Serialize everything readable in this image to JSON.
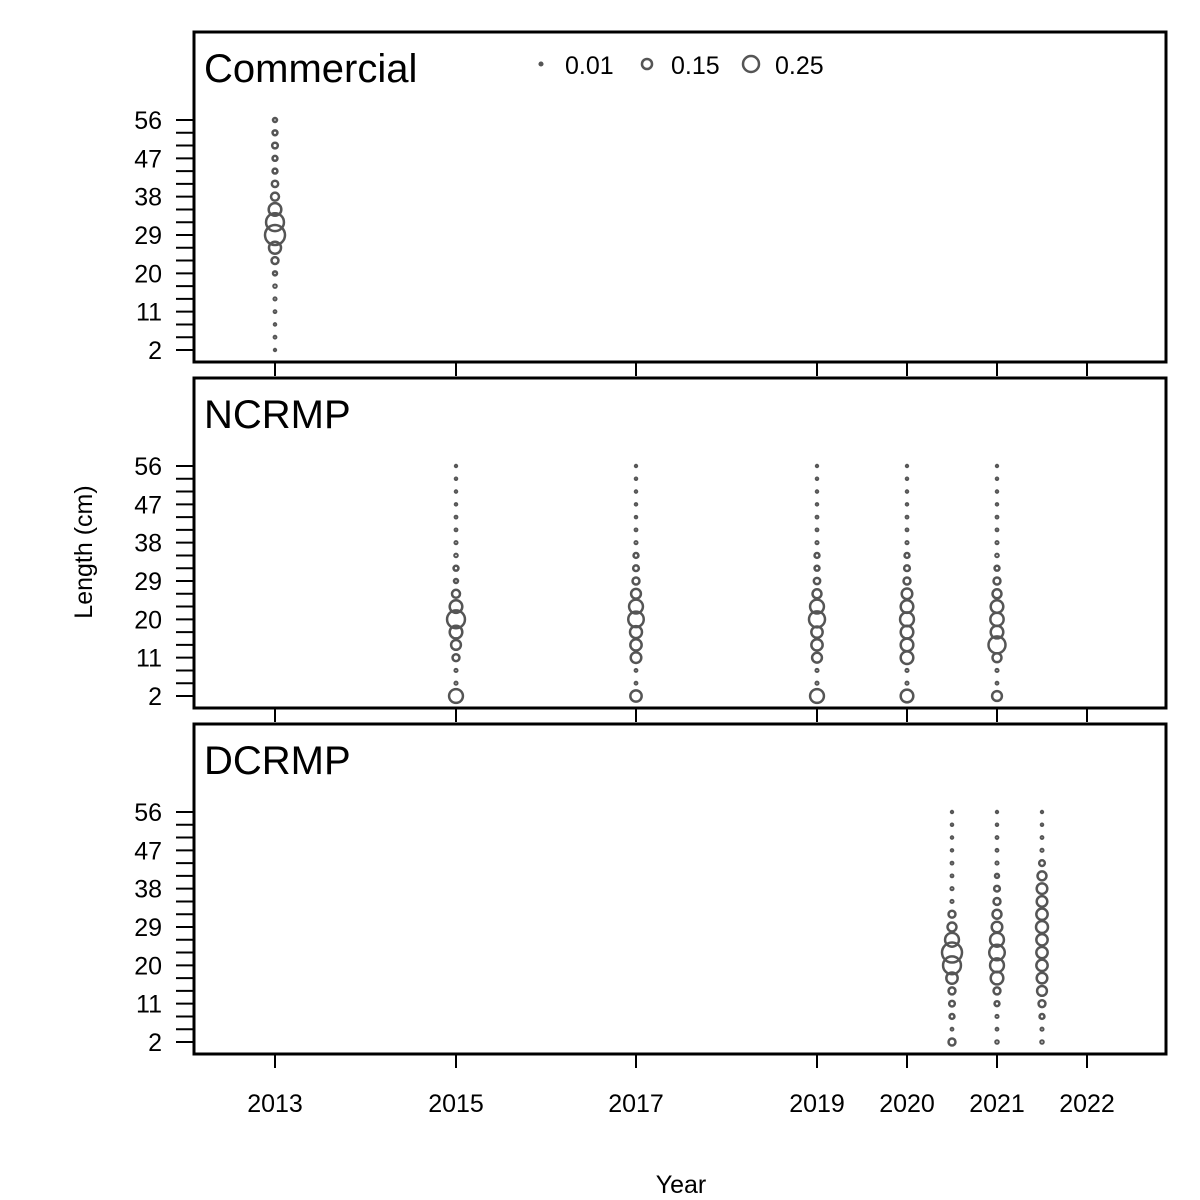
{
  "chart_data": {
    "type": "scatter",
    "subtype": "bubble",
    "xlabel": "Year",
    "ylabel": "Length (cm)",
    "x_tick_labels": [
      "2013",
      "2015",
      "2017",
      "2019",
      "2020",
      "2021",
      "2022"
    ],
    "y_tick_labels": [
      "2",
      "11",
      "20",
      "29",
      "38",
      "47",
      "56"
    ],
    "length_bins": [
      2,
      5,
      8,
      11,
      14,
      17,
      20,
      23,
      26,
      29,
      32,
      35,
      38,
      41,
      44,
      47,
      50,
      53,
      56
    ],
    "legend": {
      "placement": "top-center",
      "entries": [
        {
          "label": "0.01",
          "value": 0.01
        },
        {
          "label": "0.15",
          "value": 0.15
        },
        {
          "label": "0.25",
          "value": 0.25
        }
      ]
    },
    "marker_color": "#555555",
    "panels": [
      {
        "title": "Commercial",
        "series": [
          {
            "tick": 0,
            "proportions": [
              0.003,
              0.005,
              0.004,
              0.005,
              0.006,
              0.008,
              0.01,
              0.03,
              0.09,
              0.25,
              0.2,
              0.1,
              0.04,
              0.025,
              0.015,
              0.015,
              0.02,
              0.015,
              0.01
            ]
          }
        ]
      },
      {
        "title": "NCRMP",
        "series": [
          {
            "tick": 1,
            "proportions": [
              0.12,
              0.006,
              0.006,
              0.03,
              0.06,
              0.1,
              0.2,
              0.1,
              0.04,
              0.01,
              0.015,
              0.008,
              0.006,
              0.005,
              0.005,
              0.004,
              0.004,
              0.004,
              0.003
            ]
          },
          {
            "tick": 2,
            "proportions": [
              0.08,
              0.005,
              0.005,
              0.07,
              0.08,
              0.09,
              0.15,
              0.12,
              0.06,
              0.03,
              0.02,
              0.015,
              0.006,
              0.005,
              0.004,
              0.004,
              0.004,
              0.004,
              0.003
            ]
          },
          {
            "tick": 3,
            "proportions": [
              0.12,
              0.006,
              0.006,
              0.06,
              0.08,
              0.08,
              0.16,
              0.12,
              0.05,
              0.025,
              0.015,
              0.015,
              0.006,
              0.005,
              0.005,
              0.004,
              0.004,
              0.004,
              0.003
            ]
          },
          {
            "tick": 4,
            "proportions": [
              0.1,
              0.006,
              0.006,
              0.1,
              0.1,
              0.1,
              0.12,
              0.1,
              0.07,
              0.03,
              0.02,
              0.015,
              0.006,
              0.005,
              0.005,
              0.004,
              0.004,
              0.004,
              0.003
            ]
          },
          {
            "tick": 5,
            "proportions": [
              0.06,
              0.005,
              0.006,
              0.05,
              0.18,
              0.1,
              0.11,
              0.1,
              0.05,
              0.03,
              0.015,
              0.008,
              0.006,
              0.005,
              0.005,
              0.004,
              0.004,
              0.004,
              0.003
            ]
          }
        ]
      },
      {
        "title": "DCRMP",
        "series": [
          {
            "tick": 4.5,
            "proportions": [
              0.03,
              0.005,
              0.015,
              0.02,
              0.03,
              0.08,
              0.2,
              0.25,
              0.12,
              0.05,
              0.03,
              0.006,
              0.006,
              0.005,
              0.005,
              0.004,
              0.004,
              0.004,
              0.003
            ]
          },
          {
            "tick": 5,
            "proportions": [
              0.008,
              0.005,
              0.006,
              0.015,
              0.03,
              0.1,
              0.12,
              0.15,
              0.12,
              0.07,
              0.05,
              0.03,
              0.02,
              0.01,
              0.006,
              0.005,
              0.005,
              0.004,
              0.003
            ]
          },
          {
            "tick": 5.5,
            "proportions": [
              0.008,
              0.006,
              0.015,
              0.03,
              0.06,
              0.07,
              0.08,
              0.08,
              0.08,
              0.09,
              0.08,
              0.07,
              0.07,
              0.05,
              0.02,
              0.006,
              0.005,
              0.004,
              0.003
            ]
          }
        ]
      }
    ]
  }
}
